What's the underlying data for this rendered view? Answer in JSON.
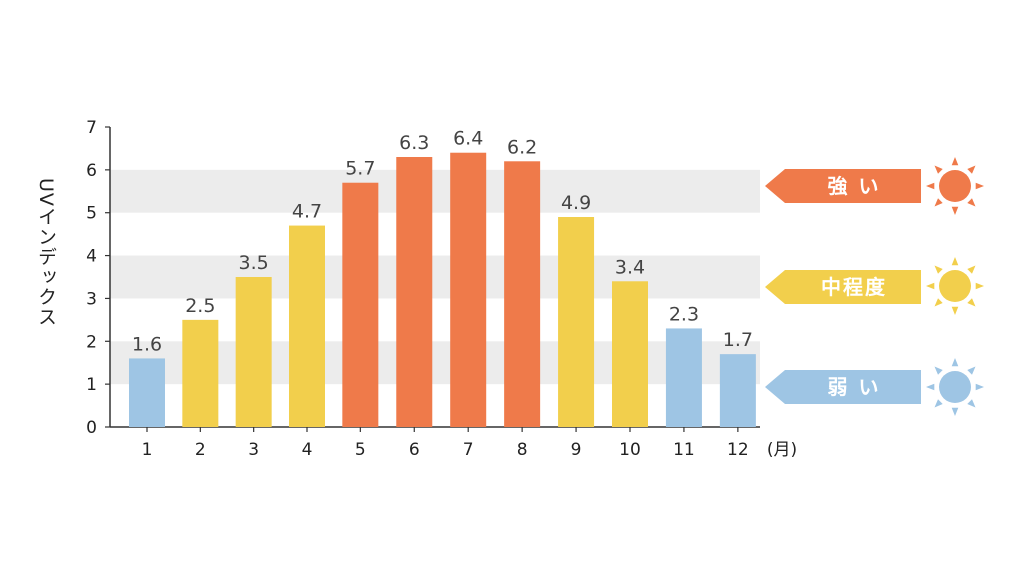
{
  "chart_data": {
    "type": "bar",
    "categories": [
      "1",
      "2",
      "3",
      "4",
      "5",
      "6",
      "7",
      "8",
      "9",
      "10",
      "11",
      "12"
    ],
    "values": [
      1.6,
      2.5,
      3.5,
      4.7,
      5.7,
      6.3,
      6.4,
      6.2,
      4.9,
      3.4,
      2.3,
      1.7
    ],
    "levels": [
      "weak",
      "moderate",
      "moderate",
      "moderate",
      "strong",
      "strong",
      "strong",
      "strong",
      "moderate",
      "moderate",
      "weak",
      "weak"
    ],
    "ylabel": "UVインデックス",
    "x_unit": "(月)",
    "ylim": [
      0,
      7
    ],
    "yticks": [
      "0",
      "1",
      "2",
      "3",
      "4",
      "5",
      "6",
      "7"
    ],
    "grid": "alternating horizontal bands"
  },
  "legend": {
    "strong": {
      "label": "強 い",
      "color": "#ef7a4a"
    },
    "moderate": {
      "label": "中程度",
      "color": "#f2cf4c"
    },
    "weak": {
      "label": "弱 い",
      "color": "#9ec5e4"
    }
  },
  "icons": {
    "strong": "sun-icon",
    "moderate": "sun-icon",
    "weak": "sun-icon"
  }
}
